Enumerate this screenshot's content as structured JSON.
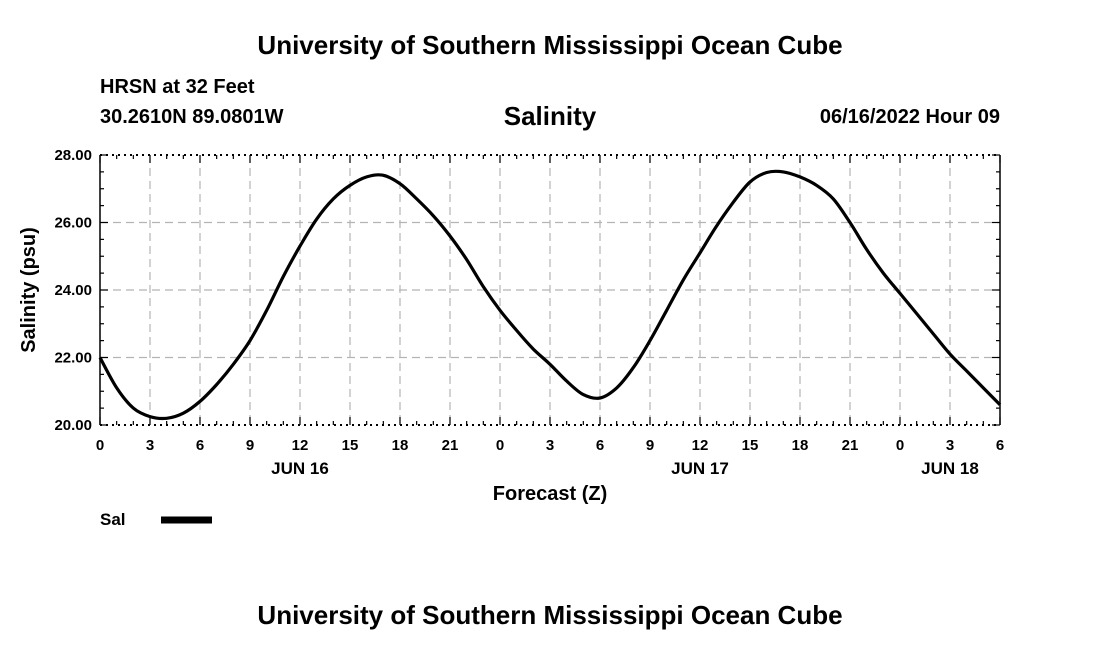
{
  "header": {
    "title": "University of Southern Mississippi Ocean Cube",
    "station": "HRSN at 32 Feet",
    "coords": "30.2610N  89.0801W",
    "datetime": "06/16/2022 Hour 09"
  },
  "legend": {
    "label": "Sal",
    "color": "#000000"
  },
  "footer": {
    "title": "University of Southern Mississippi Ocean Cube"
  },
  "chart_data": {
    "type": "line",
    "title": "Salinity",
    "xlabel": "Forecast (Z)",
    "ylabel": "Salinity (psu)",
    "ylim": [
      20,
      28
    ],
    "xlim": [
      0,
      54
    ],
    "grid": true,
    "y_ticks": [
      "20.00",
      "22.00",
      "24.00",
      "26.00",
      "28.00"
    ],
    "y_tick_values": [
      20,
      22,
      24,
      26,
      28
    ],
    "x_tick_values": [
      0,
      3,
      6,
      9,
      12,
      15,
      18,
      21,
      24,
      27,
      30,
      33,
      36,
      39,
      42,
      45,
      48,
      51,
      54
    ],
    "x_tick_labels": [
      "0",
      "3",
      "6",
      "9",
      "12",
      "15",
      "18",
      "21",
      "0",
      "3",
      "6",
      "9",
      "12",
      "15",
      "18",
      "21",
      "0",
      "3",
      "6"
    ],
    "day_labels": [
      {
        "label": "JUN 16",
        "x": 12
      },
      {
        "label": "JUN 17",
        "x": 36
      },
      {
        "label": "JUN 18",
        "x": 51
      }
    ],
    "series": [
      {
        "name": "Sal",
        "color": "#000000",
        "x": [
          0,
          1,
          2,
          3,
          4,
          5,
          6,
          7,
          8,
          9,
          10,
          11,
          12,
          13,
          14,
          15,
          16,
          17,
          18,
          19,
          20,
          21,
          22,
          23,
          24,
          25,
          26,
          27,
          28,
          29,
          30,
          31,
          32,
          33,
          34,
          35,
          36,
          37,
          38,
          39,
          40,
          41,
          42,
          43,
          44,
          45,
          46,
          47,
          48,
          49,
          50,
          51,
          52,
          53,
          54
        ],
        "y": [
          22.0,
          21.1,
          20.5,
          20.25,
          20.2,
          20.35,
          20.7,
          21.2,
          21.8,
          22.5,
          23.4,
          24.4,
          25.3,
          26.1,
          26.7,
          27.1,
          27.35,
          27.4,
          27.15,
          26.7,
          26.2,
          25.6,
          24.9,
          24.1,
          23.4,
          22.8,
          22.25,
          21.8,
          21.3,
          20.9,
          20.8,
          21.1,
          21.7,
          22.5,
          23.4,
          24.3,
          25.1,
          25.9,
          26.6,
          27.2,
          27.48,
          27.5,
          27.35,
          27.1,
          26.7,
          26.0,
          25.2,
          24.5,
          23.9,
          23.3,
          22.7,
          22.1,
          21.6,
          21.1,
          20.6
        ]
      }
    ]
  }
}
